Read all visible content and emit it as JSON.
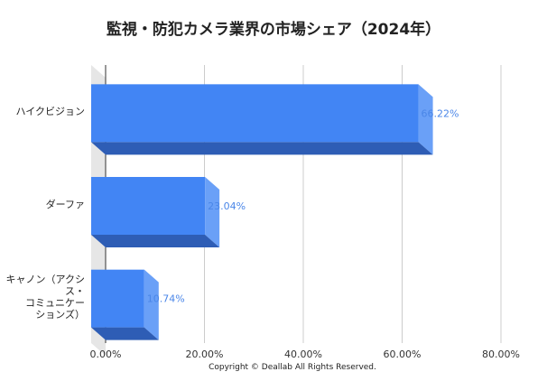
{
  "title": "監視・防犯カメラ業界の市場シェア（2024年）",
  "copyright": "Copyright © Deallab All Rights Reserved.",
  "colors": {
    "bar_front": "#4285f4",
    "bar_side": "#6aa0f7",
    "bar_bottom": "#2e5db5",
    "wall": "#e6e6e6",
    "grid": "#cccccc",
    "axis": "#333333",
    "value_label": "#4a86e8"
  },
  "chart_data": {
    "type": "bar",
    "orientation": "horizontal",
    "style": "3d",
    "categories": [
      "ハイクビジョン",
      "ダーファ",
      "キャノン（アクシス・コミュニケーションズ）"
    ],
    "category_label_lines": [
      [
        "ハイクビジョン"
      ],
      [
        "ダーファ"
      ],
      [
        "キャノン（アクシ",
        "ス・",
        "コミュニケー",
        "ションズ）"
      ]
    ],
    "values": [
      66.22,
      23.04,
      10.74
    ],
    "value_labels": [
      "66.22%",
      "23.04%",
      "10.74%"
    ],
    "xlim": [
      0,
      80
    ],
    "xticks": [
      "0.00%",
      "20.00%",
      "40.00%",
      "60.00%",
      "80.00%"
    ],
    "grid": true,
    "legend": "none",
    "xlabel": "",
    "ylabel": ""
  }
}
